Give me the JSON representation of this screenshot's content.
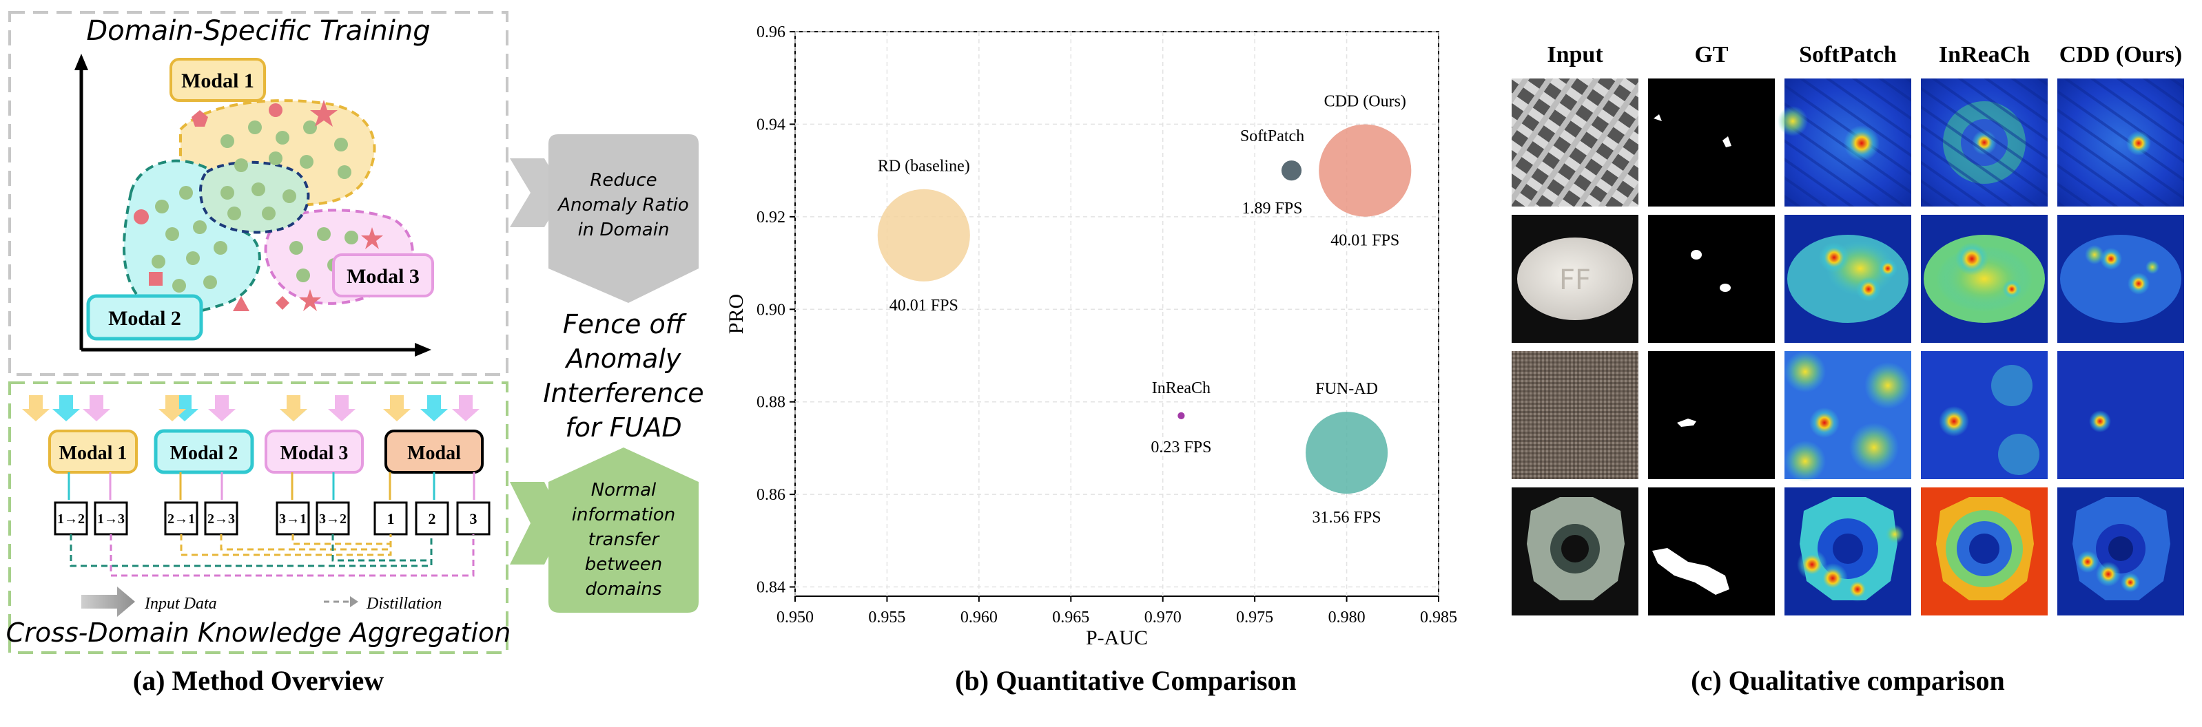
{
  "panel_a": {
    "caption": "(a) Method Overview",
    "top_title": "Domain-Specific Training",
    "bottom_title": "Cross-Domain Knowledge Aggregation",
    "modal1": "Modal 1",
    "modal2": "Modal 2",
    "modal3": "Modal 3",
    "modal_combined": "Modal",
    "arrow_top_lines": [
      "Reduce",
      "Anomaly Ratio",
      "in Domain"
    ],
    "center_lines": [
      "Fence off",
      "Anomaly",
      "Interference",
      "for FUAD"
    ],
    "arrow_bottom_lines": [
      "Normal",
      "information",
      "transfer",
      "between",
      "domains"
    ],
    "legend_input": "Input Data",
    "legend_distill": "Distillation",
    "kd_boxes": [
      "1→2",
      "1→3",
      "2→1",
      "2→3",
      "3→1",
      "3→2",
      "1",
      "2",
      "3"
    ],
    "colors": {
      "modal1": "#fce8b0",
      "modal2": "#c6f6f6",
      "modal3": "#fbdcf7",
      "modal_combined": "#f7c8a8",
      "normal_dot": "#9cc486",
      "anomaly_dot": "#e8727c"
    }
  },
  "panel_b": {
    "caption": "(b) Quantitative Comparison",
    "chart_data": {
      "type": "scatter",
      "xlabel": "P-AUC",
      "ylabel": "PRO",
      "xlim": [
        0.95,
        0.985
      ],
      "ylim": [
        0.838,
        0.96
      ],
      "xticks": [
        "0.950",
        "0.955",
        "0.960",
        "0.965",
        "0.970",
        "0.975",
        "0.980",
        "0.985"
      ],
      "yticks": [
        "0.84",
        "0.86",
        "0.88",
        "0.90",
        "0.92",
        "0.94",
        "0.96"
      ],
      "xtick_values": [
        0.95,
        0.955,
        0.96,
        0.965,
        0.97,
        0.975,
        0.98,
        0.985
      ],
      "ytick_values": [
        0.84,
        0.86,
        0.88,
        0.9,
        0.92,
        0.94,
        0.96
      ],
      "grid": true,
      "points": [
        {
          "name": "RD (baseline)",
          "x": 0.957,
          "y": 0.916,
          "fps": 40.01,
          "fps_label": "40.01 FPS",
          "color": "#f5d49e"
        },
        {
          "name": "SoftPatch",
          "x": 0.977,
          "y": 0.93,
          "fps": 1.89,
          "fps_label": "1.89 FPS",
          "color": "#5a6b74"
        },
        {
          "name": "CDD (Ours)",
          "x": 0.981,
          "y": 0.93,
          "fps": 40.01,
          "fps_label": "40.01 FPS",
          "color": "#ea9684"
        },
        {
          "name": "InReaCh",
          "x": 0.971,
          "y": 0.877,
          "fps": 0.23,
          "fps_label": "0.23 FPS",
          "color": "#a23aa6"
        },
        {
          "name": "FUN-AD",
          "x": 0.98,
          "y": 0.869,
          "fps": 31.56,
          "fps_label": "31.56 FPS",
          "color": "#5bb5a8"
        }
      ]
    }
  },
  "panel_c": {
    "caption": "(c) Qualitative comparison",
    "columns": [
      "Input",
      "GT",
      "SoftPatch",
      "InReaCh",
      "CDD (Ours)"
    ]
  }
}
